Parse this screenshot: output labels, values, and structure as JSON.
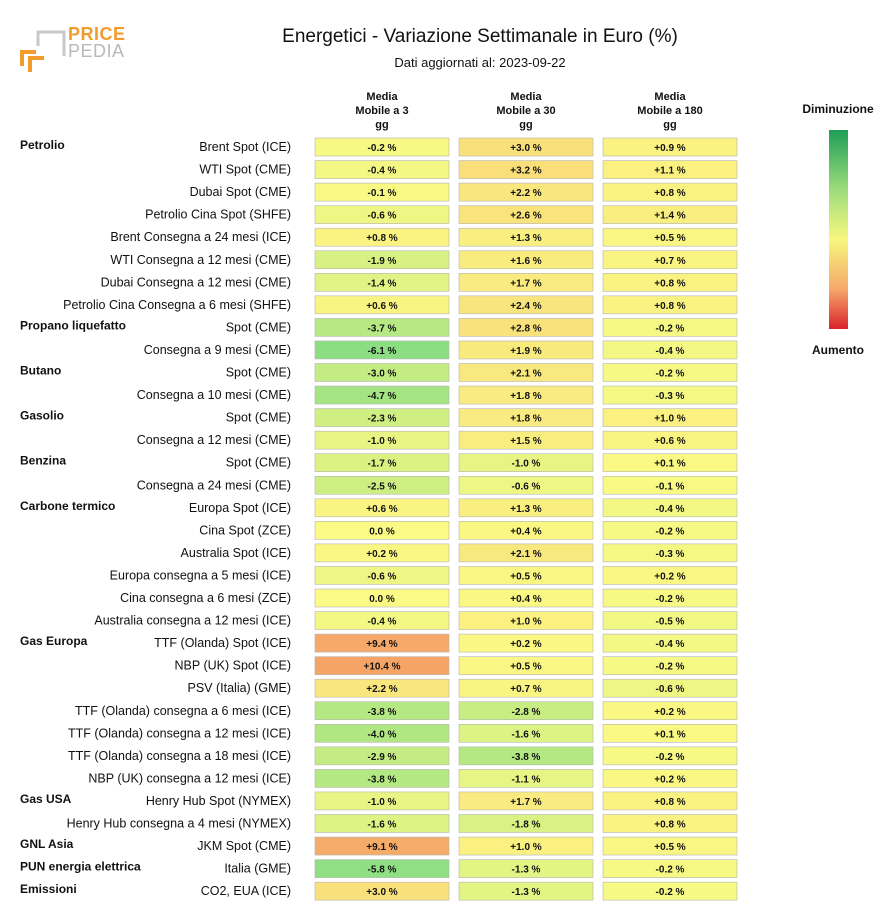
{
  "logo": {
    "line1": "PRICE",
    "line2": "PEDIA"
  },
  "header": {
    "title": "Energetici - Variazione Settimanale in Euro (%)",
    "subtitle": "Dati aggiornati al: 2023-09-22"
  },
  "columns": [
    {
      "line1": "Media",
      "line2": "Mobile a 3",
      "line3": "gg"
    },
    {
      "line1": "Media",
      "line2": "Mobile a 30",
      "line3": "gg"
    },
    {
      "line1": "Media",
      "line2": "Mobile a 180",
      "line3": "gg"
    }
  ],
  "legend": {
    "top": "Diminuzione",
    "bottom": "Aumento",
    "colors": {
      "decrease": "#1e9e56",
      "neutral": "#f7f77e",
      "increase": "#d9232b"
    }
  },
  "chart_data": {
    "type": "table",
    "title": "Energetici - Variazione Settimanale in Euro (%)",
    "columns": [
      "Media Mobile a 3 gg",
      "Media Mobile a 30 gg",
      "Media Mobile a 180 gg"
    ],
    "rows": [
      {
        "group": "Petrolio",
        "label": "Brent Spot (ICE)",
        "values": [
          -0.2,
          3.0,
          0.9
        ]
      },
      {
        "group": "",
        "label": "WTI Spot (CME)",
        "values": [
          -0.4,
          3.2,
          1.1
        ]
      },
      {
        "group": "",
        "label": "Dubai Spot (CME)",
        "values": [
          -0.1,
          2.2,
          0.8
        ]
      },
      {
        "group": "",
        "label": "Petrolio Cina Spot (SHFE)",
        "values": [
          -0.6,
          2.6,
          1.4
        ]
      },
      {
        "group": "",
        "label": "Brent Consegna a 24 mesi (ICE)",
        "values": [
          0.8,
          1.3,
          0.5
        ]
      },
      {
        "group": "",
        "label": "WTI Consegna a 12 mesi (CME)",
        "values": [
          -1.9,
          1.6,
          0.7
        ]
      },
      {
        "group": "",
        "label": "Dubai Consegna a 12 mesi (CME)",
        "values": [
          -1.4,
          1.7,
          0.8
        ]
      },
      {
        "group": "",
        "label": "Petrolio Cina Consegna a 6 mesi (SHFE)",
        "values": [
          0.6,
          2.4,
          0.8
        ]
      },
      {
        "group": "Propano liquefatto",
        "label": "Spot (CME)",
        "values": [
          -3.7,
          2.8,
          -0.2
        ]
      },
      {
        "group": "",
        "label": "Consegna a 9 mesi (CME)",
        "values": [
          -6.1,
          1.9,
          -0.4
        ]
      },
      {
        "group": "Butano",
        "label": "Spot (CME)",
        "values": [
          -3.0,
          2.1,
          -0.2
        ]
      },
      {
        "group": "",
        "label": "Consegna a 10 mesi (CME)",
        "values": [
          -4.7,
          1.8,
          -0.3
        ]
      },
      {
        "group": "Gasolio",
        "label": "Spot (CME)",
        "values": [
          -2.3,
          1.8,
          1.0
        ]
      },
      {
        "group": "",
        "label": "Consegna a 12 mesi (CME)",
        "values": [
          -1.0,
          1.5,
          0.6
        ]
      },
      {
        "group": "Benzina",
        "label": "Spot (CME)",
        "values": [
          -1.7,
          -1.0,
          0.1
        ]
      },
      {
        "group": "",
        "label": "Consegna a 24 mesi (CME)",
        "values": [
          -2.5,
          -0.6,
          -0.1
        ]
      },
      {
        "group": "Carbone termico",
        "label": "Europa Spot (ICE)",
        "values": [
          0.6,
          1.3,
          -0.4
        ]
      },
      {
        "group": "",
        "label": "Cina Spot (ZCE)",
        "values": [
          0.0,
          0.4,
          -0.2
        ]
      },
      {
        "group": "",
        "label": "Australia Spot (ICE)",
        "values": [
          0.2,
          2.1,
          -0.3
        ]
      },
      {
        "group": "",
        "label": "Europa consegna a 5 mesi (ICE)",
        "values": [
          -0.6,
          0.5,
          0.2
        ]
      },
      {
        "group": "",
        "label": "Cina consegna a 6 mesi (ZCE)",
        "values": [
          0.0,
          0.4,
          -0.2
        ]
      },
      {
        "group": "",
        "label": "Australia consegna a 12 mesi (ICE)",
        "values": [
          -0.4,
          1.0,
          -0.5
        ]
      },
      {
        "group": "Gas Europa",
        "label": "TTF (Olanda) Spot (ICE)",
        "values": [
          9.4,
          0.2,
          -0.4
        ]
      },
      {
        "group": "",
        "label": "NBP (UK) Spot (ICE)",
        "values": [
          10.4,
          0.5,
          -0.2
        ]
      },
      {
        "group": "",
        "label": "PSV (Italia) (GME)",
        "values": [
          2.2,
          0.7,
          -0.6
        ]
      },
      {
        "group": "",
        "label": "TTF (Olanda) consegna a 6 mesi (ICE)",
        "values": [
          -3.8,
          -2.8,
          0.2
        ]
      },
      {
        "group": "",
        "label": "TTF (Olanda) consegna a 12 mesi (ICE)",
        "values": [
          -4.0,
          -1.6,
          0.1
        ]
      },
      {
        "group": "",
        "label": "TTF (Olanda) consegna a 18 mesi (ICE)",
        "values": [
          -2.9,
          -3.8,
          -0.2
        ]
      },
      {
        "group": "",
        "label": "NBP (UK) consegna a 12 mesi (ICE)",
        "values": [
          -3.8,
          -1.1,
          0.2
        ]
      },
      {
        "group": "Gas USA",
        "label": "Henry Hub Spot (NYMEX)",
        "values": [
          -1.0,
          1.7,
          0.8
        ]
      },
      {
        "group": "",
        "label": "Henry Hub consegna a 4 mesi (NYMEX)",
        "values": [
          -1.6,
          -1.8,
          0.8
        ]
      },
      {
        "group": "GNL Asia",
        "label": "JKM Spot (CME)",
        "values": [
          9.1,
          1.0,
          0.5
        ]
      },
      {
        "group": "PUN energia elettrica",
        "label": "Italia (GME)",
        "values": [
          -5.8,
          -1.3,
          -0.2
        ]
      },
      {
        "group": "Emissioni",
        "label": "CO2, EUA (ICE)",
        "values": [
          3.0,
          -1.3,
          -0.2
        ]
      }
    ]
  }
}
